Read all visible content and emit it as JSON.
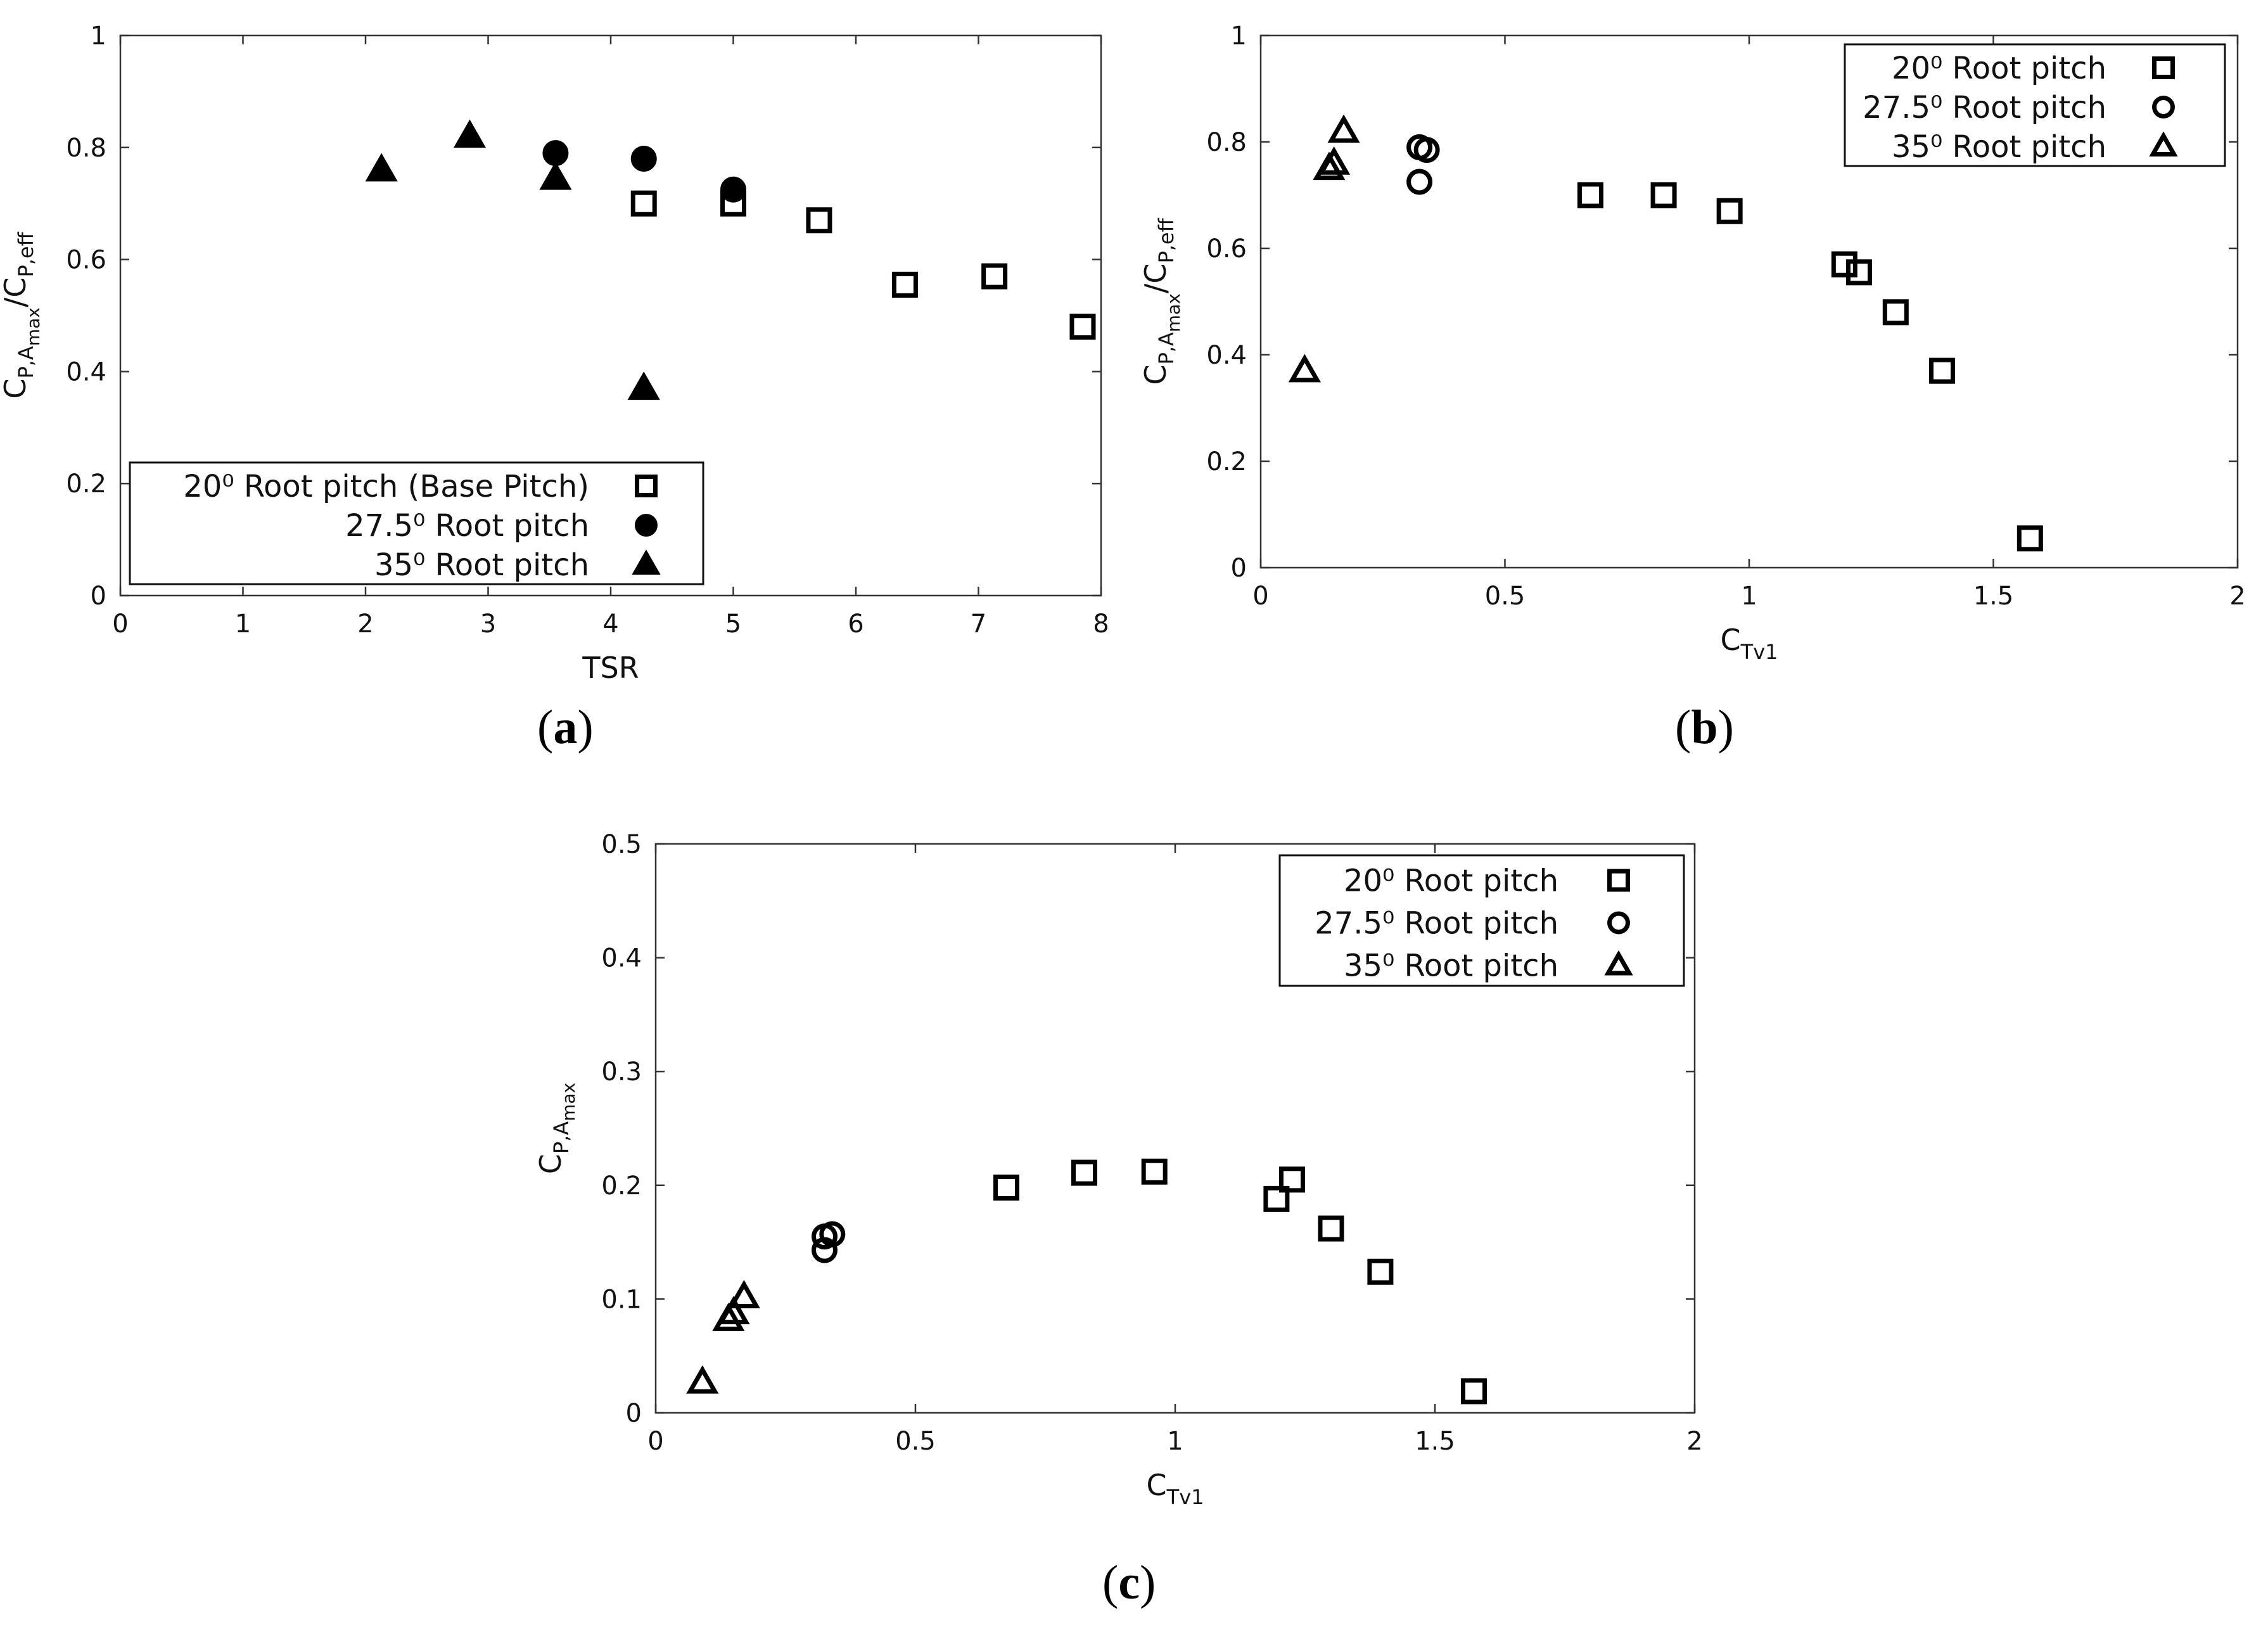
{
  "chart_data": [
    {
      "id": "a",
      "type": "scatter",
      "panel_label": "a",
      "xlabel": "TSR",
      "ylabel": {
        "base": "C",
        "sub1": "P,A",
        "sub1b": "max",
        "mid": "/C",
        "sub2": "P,eff"
      },
      "xlim": [
        0,
        8
      ],
      "ylim": [
        0,
        1
      ],
      "xticks": [
        0,
        1,
        2,
        3,
        4,
        5,
        6,
        7,
        8
      ],
      "yticks": [
        0,
        0.2,
        0.4,
        0.6,
        0.8,
        1
      ],
      "ytick_labels": [
        "0",
        "0.2",
        "0.4",
        "0.6",
        "0.8",
        "1"
      ],
      "legend_position": "bottom-left",
      "series": [
        {
          "name": "20⁰ Root pitch (Base Pitch)",
          "marker": "square-open",
          "x": [
            4.27,
            5.0,
            5.7,
            6.4,
            7.13,
            7.85
          ],
          "y": [
            0.7,
            0.7,
            0.67,
            0.555,
            0.57,
            0.48
          ]
        },
        {
          "name": "27.5⁰ Root pitch",
          "marker": "circle-filled",
          "x": [
            3.55,
            4.27,
            5.0
          ],
          "y": [
            0.79,
            0.78,
            0.725
          ]
        },
        {
          "name": "35⁰ Root pitch",
          "marker": "triangle-filled",
          "x": [
            2.13,
            2.85,
            3.55,
            4.27
          ],
          "y": [
            0.76,
            0.82,
            0.745,
            0.37
          ]
        }
      ]
    },
    {
      "id": "b",
      "type": "scatter",
      "panel_label": "b",
      "xlabel": {
        "base": "C",
        "sub": "Tv1"
      },
      "ylabel": {
        "base": "C",
        "sub1": "P,A",
        "sub1b": "max",
        "mid": "/C",
        "sub2": "P,eff"
      },
      "xlim": [
        0,
        2
      ],
      "ylim": [
        0,
        1
      ],
      "xticks": [
        0,
        0.5,
        1,
        1.5,
        2
      ],
      "xtick_labels": [
        "0",
        "0.5",
        "1",
        "1.5",
        "2"
      ],
      "yticks": [
        0,
        0.2,
        0.4,
        0.6,
        0.8,
        1
      ],
      "ytick_labels": [
        "0",
        "0.2",
        "0.4",
        "0.6",
        "0.8",
        "1"
      ],
      "legend_position": "top-right",
      "series": [
        {
          "name": "20⁰ Root pitch",
          "marker": "square-open",
          "x": [
            0.675,
            0.825,
            0.96,
            1.195,
            1.225,
            1.3,
            1.395,
            1.575
          ],
          "y": [
            0.7,
            0.7,
            0.67,
            0.57,
            0.555,
            0.48,
            0.37,
            0.055
          ]
        },
        {
          "name": "27.5⁰ Root pitch",
          "marker": "circle-open",
          "x": [
            0.325,
            0.34,
            0.325
          ],
          "y": [
            0.79,
            0.785,
            0.725
          ]
        },
        {
          "name": "35⁰ Root pitch",
          "marker": "triangle-open",
          "x": [
            0.09,
            0.14,
            0.15,
            0.17
          ],
          "y": [
            0.37,
            0.75,
            0.76,
            0.82
          ]
        }
      ]
    },
    {
      "id": "c",
      "type": "scatter",
      "panel_label": "c",
      "xlabel": {
        "base": "C",
        "sub": "Tv1"
      },
      "ylabel": {
        "base": "C",
        "sub1": "P,A",
        "sub1b": "max",
        "mid": "",
        "sub2": ""
      },
      "xlim": [
        0,
        2
      ],
      "ylim": [
        0,
        0.5
      ],
      "xticks": [
        0,
        0.5,
        1,
        1.5,
        2
      ],
      "xtick_labels": [
        "0",
        "0.5",
        "1",
        "1.5",
        "2"
      ],
      "yticks": [
        0,
        0.1,
        0.2,
        0.3,
        0.4,
        0.5
      ],
      "ytick_labels": [
        "0",
        "0.1",
        "0.2",
        "0.3",
        "0.4",
        "0.5"
      ],
      "legend_position": "top-right",
      "series": [
        {
          "name": "20⁰ Root pitch",
          "marker": "square-open",
          "x": [
            0.675,
            0.825,
            0.96,
            1.195,
            1.225,
            1.3,
            1.395,
            1.575
          ],
          "y": [
            0.198,
            0.211,
            0.212,
            0.188,
            0.205,
            0.162,
            0.124,
            0.019
          ]
        },
        {
          "name": "27.5⁰ Root pitch",
          "marker": "circle-open",
          "x": [
            0.325,
            0.34,
            0.325
          ],
          "y": [
            0.155,
            0.157,
            0.143
          ]
        },
        {
          "name": "35⁰ Root pitch",
          "marker": "triangle-open",
          "x": [
            0.09,
            0.14,
            0.15,
            0.17
          ],
          "y": [
            0.027,
            0.082,
            0.088,
            0.102
          ]
        }
      ]
    }
  ]
}
